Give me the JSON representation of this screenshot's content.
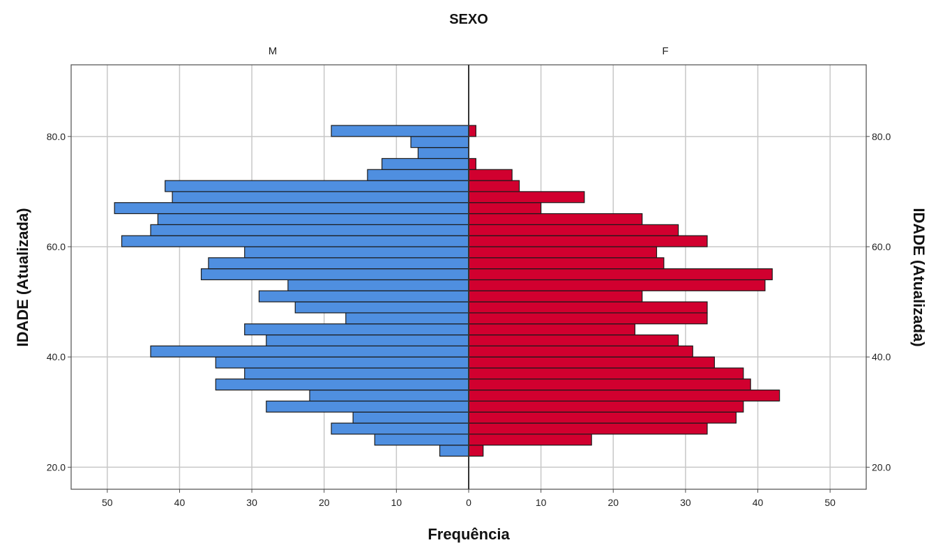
{
  "chart_data": {
    "type": "bar",
    "subtype": "population-pyramid",
    "title": "SEXO",
    "xlabel": "Frequência",
    "ylabel": "IDADE (Atualizada)",
    "ylabel_right": "IDADE (Atualizada)",
    "xlim": [
      0,
      55
    ],
    "x_ticks": [
      0,
      10,
      20,
      30,
      40,
      50
    ],
    "ylim": [
      16,
      93
    ],
    "y_ticks": [
      20.0,
      40.0,
      60.0,
      80.0
    ],
    "y_tick_labels": [
      "20.0",
      "40.0",
      "60.0",
      "80.0"
    ],
    "grid": true,
    "colors": {
      "M": "#4f8fe0",
      "F": "#d1002f"
    },
    "series": [
      {
        "name": "M",
        "age_bins": [
          23,
          25,
          27,
          29,
          31,
          33,
          35,
          37,
          39,
          41,
          43,
          45,
          47,
          49,
          51,
          53,
          55,
          57,
          59,
          61,
          63,
          65,
          67,
          69,
          71,
          73,
          75,
          77,
          79,
          81
        ],
        "values": [
          4,
          13,
          19,
          16,
          28,
          22,
          35,
          31,
          35,
          44,
          28,
          31,
          17,
          24,
          29,
          25,
          37,
          36,
          31,
          48,
          44,
          43,
          49,
          41,
          42,
          14,
          12,
          7,
          8,
          19
        ]
      },
      {
        "name": "F",
        "age_bins": [
          23,
          25,
          27,
          29,
          31,
          33,
          35,
          37,
          39,
          41,
          43,
          45,
          47,
          49,
          51,
          53,
          55,
          57,
          59,
          61,
          63,
          65,
          67,
          69,
          71,
          73,
          75,
          77,
          79,
          81
        ],
        "values": [
          2,
          17,
          33,
          37,
          38,
          43,
          39,
          38,
          34,
          31,
          29,
          23,
          33,
          33,
          24,
          41,
          42,
          27,
          26,
          33,
          29,
          24,
          10,
          16,
          7,
          6,
          1,
          0,
          0,
          1
        ]
      }
    ]
  }
}
